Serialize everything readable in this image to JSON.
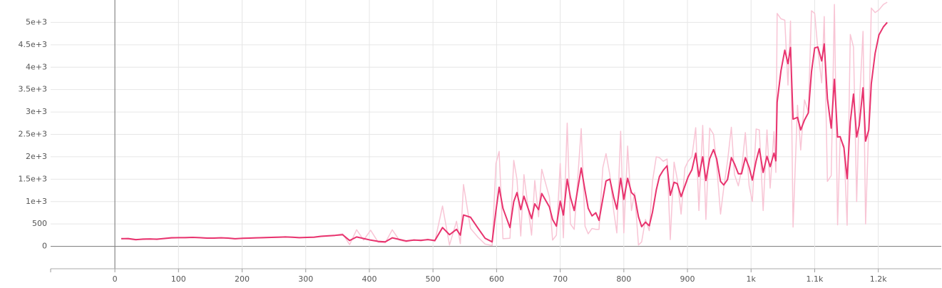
{
  "chart_data": {
    "type": "line",
    "xlim": [
      -101,
      1299
    ],
    "ylim": [
      -500,
      5500
    ],
    "xticks": [
      0,
      100,
      200,
      300,
      400,
      500,
      600,
      700,
      800,
      900,
      {
        "value": 1000,
        "label": "1k"
      },
      {
        "value": 1100,
        "label": "1.1k"
      },
      {
        "value": 1200,
        "label": "1.2k"
      }
    ],
    "yticks": [
      0,
      500,
      {
        "value": 1000,
        "label": "1e+3"
      },
      {
        "value": 1500,
        "label": "1.5e+3"
      },
      {
        "value": 2000,
        "label": "2e+3"
      },
      {
        "value": 2500,
        "label": "2.5e+3"
      },
      {
        "value": 3000,
        "label": "3e+3"
      },
      {
        "value": 3500,
        "label": "3.5e+3"
      },
      {
        "value": 4000,
        "label": "4e+3"
      },
      {
        "value": 4500,
        "label": "4.5e+3"
      },
      {
        "value": 5000,
        "label": "5e+3"
      }
    ],
    "grid": true,
    "x": [
      10,
      21,
      33,
      44,
      55,
      66,
      77,
      89,
      100,
      111,
      122,
      133,
      145,
      156,
      167,
      178,
      189,
      201,
      212,
      223,
      234,
      246,
      257,
      268,
      279,
      290,
      302,
      313,
      324,
      335,
      346,
      358,
      369,
      380,
      391,
      402,
      414,
      425,
      436,
      447,
      458,
      470,
      481,
      492,
      503,
      515,
      526,
      537,
      543,
      548,
      559,
      571,
      582,
      593,
      599,
      604,
      610,
      621,
      627,
      632,
      638,
      643,
      655,
      660,
      666,
      671,
      683,
      688,
      694,
      700,
      705,
      711,
      716,
      722,
      733,
      739,
      744,
      750,
      756,
      761,
      767,
      772,
      778,
      784,
      789,
      795,
      800,
      806,
      812,
      817,
      823,
      828,
      834,
      840,
      845,
      851,
      856,
      862,
      868,
      873,
      879,
      884,
      890,
      896,
      901,
      907,
      913,
      918,
      924,
      929,
      935,
      941,
      946,
      952,
      957,
      963,
      969,
      974,
      980,
      985,
      991,
      997,
      1002,
      1008,
      1013,
      1019,
      1025,
      1030,
      1036,
      1039,
      1041,
      1047,
      1053,
      1058,
      1062,
      1066,
      1073,
      1078,
      1084,
      1090,
      1095,
      1100,
      1105,
      1111,
      1115,
      1120,
      1126,
      1131,
      1136,
      1140,
      1146,
      1151,
      1156,
      1161,
      1166,
      1170,
      1176,
      1180,
      1185,
      1189,
      1195,
      1201,
      1208,
      1214
    ],
    "series": [
      {
        "color": "#f8c5d5",
        "width": 1.5,
        "values": [
          180,
          160,
          140,
          170,
          175,
          150,
          180,
          200,
          195,
          200,
          205,
          190,
          180,
          190,
          195,
          180,
          165,
          185,
          190,
          195,
          200,
          205,
          210,
          215,
          200,
          190,
          205,
          210,
          230,
          240,
          250,
          280,
          40,
          370,
          140,
          360,
          90,
          80,
          370,
          140,
          100,
          150,
          120,
          160,
          110,
          900,
          30,
          560,
          60,
          1380,
          400,
          200,
          50,
          20,
          1850,
          2120,
          170,
          180,
          1920,
          1500,
          230,
          1600,
          250,
          1470,
          660,
          1720,
          1100,
          140,
          250,
          1850,
          190,
          2750,
          500,
          380,
          2630,
          450,
          280,
          400,
          380,
          380,
          1760,
          2070,
          1600,
          800,
          300,
          2570,
          300,
          2240,
          800,
          1200,
          30,
          100,
          600,
          350,
          1450,
          2000,
          1980,
          1900,
          1950,
          150,
          1880,
          1500,
          720,
          1750,
          1900,
          2000,
          2650,
          800,
          2700,
          600,
          2640,
          2500,
          1800,
          720,
          1300,
          1900,
          2660,
          1600,
          1350,
          1700,
          2540,
          1350,
          1000,
          2620,
          2600,
          800,
          2600,
          1300,
          2560,
          1650,
          5200,
          5080,
          5050,
          3600,
          5030,
          430,
          3150,
          2150,
          3270,
          3000,
          5260,
          5200,
          4400,
          3650,
          5130,
          1450,
          1580,
          5400,
          480,
          2400,
          2250,
          470,
          4730,
          4450,
          1000,
          3100,
          4800,
          500,
          2700,
          5320,
          5220,
          5280,
          5400,
          5450
        ]
      },
      {
        "color": "#e8336e",
        "width": 2,
        "values": [
          170,
          175,
          150,
          160,
          165,
          160,
          175,
          190,
          195,
          195,
          200,
          195,
          185,
          185,
          190,
          185,
          170,
          180,
          185,
          190,
          195,
          200,
          205,
          210,
          205,
          195,
          200,
          205,
          225,
          235,
          245,
          260,
          130,
          210,
          175,
          140,
          110,
          100,
          190,
          155,
          120,
          140,
          135,
          150,
          130,
          420,
          260,
          380,
          250,
          700,
          650,
          400,
          180,
          100,
          800,
          1320,
          850,
          420,
          1000,
          1200,
          820,
          1120,
          620,
          950,
          820,
          1180,
          880,
          600,
          450,
          1010,
          700,
          1500,
          1100,
          800,
          1750,
          1250,
          850,
          680,
          750,
          580,
          1060,
          1460,
          1500,
          1100,
          830,
          1520,
          1050,
          1520,
          1200,
          1130,
          660,
          440,
          540,
          460,
          760,
          1260,
          1560,
          1700,
          1800,
          1140,
          1430,
          1400,
          1110,
          1350,
          1550,
          1710,
          2080,
          1560,
          2000,
          1470,
          1960,
          2160,
          1950,
          1450,
          1370,
          1490,
          1980,
          1840,
          1620,
          1620,
          1980,
          1760,
          1480,
          1910,
          2180,
          1650,
          2010,
          1780,
          2080,
          1910,
          3220,
          3920,
          4380,
          4080,
          4440,
          2840,
          2880,
          2600,
          2820,
          2980,
          3900,
          4430,
          4450,
          4140,
          4520,
          3300,
          2640,
          3730,
          2440,
          2450,
          2200,
          1510,
          2780,
          3400,
          2440,
          2700,
          3540,
          2350,
          2600,
          3630,
          4310,
          4720,
          4900,
          5000
        ]
      }
    ]
  }
}
